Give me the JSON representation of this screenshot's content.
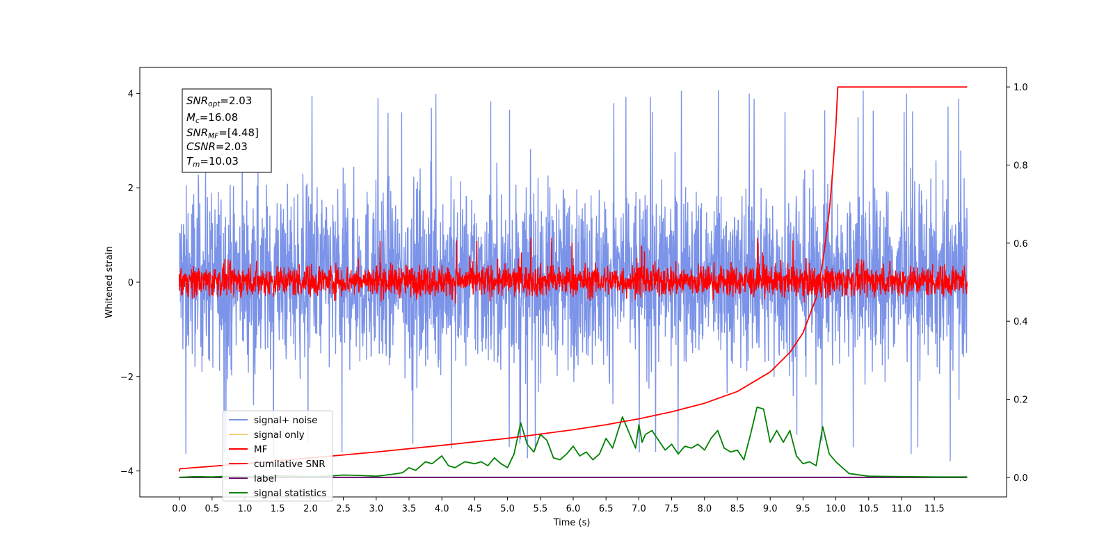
{
  "chart_data": {
    "type": "line",
    "xlabel": "Time (s)",
    "ylabel": "Whitened strain",
    "xlim": [
      -0.6,
      12.6
    ],
    "ylim": [
      -4.55,
      4.55
    ],
    "y2lim": [
      -0.05,
      1.05
    ],
    "x_ticks": [
      "0.0",
      "0.5",
      "1.0",
      "1.5",
      "2.0",
      "2.5",
      "3.0",
      "3.5",
      "4.0",
      "4.5",
      "5.0",
      "5.5",
      "6.0",
      "6.5",
      "7.0",
      "7.5",
      "8.0",
      "8.5",
      "9.0",
      "9.5",
      "10.0",
      "10.5",
      "11.0",
      "11.5"
    ],
    "y_ticks": [
      "4",
      "2",
      "0",
      "−2",
      "−4"
    ],
    "y2_ticks": [
      "1.0",
      "0.8",
      "0.6",
      "0.4",
      "0.2",
      "0.0"
    ],
    "annotation": {
      "snr_opt": {
        "base": "SNR",
        "sub": "opt",
        "value": "=2.03"
      },
      "mc": {
        "base": "M",
        "sub": "c",
        "value": "=16.08"
      },
      "snr_mf": {
        "base": "SNR",
        "sub": "MF",
        "value": "=[4.48]"
      },
      "csnr": {
        "base": "CSNR",
        "value": "=2.03"
      },
      "tm": {
        "base": "T",
        "sub": "m",
        "value": "=10.03"
      }
    },
    "legend": {
      "placement": "lower left",
      "entries": [
        {
          "label": "signal+ noise",
          "color": "#7b93e8"
        },
        {
          "label": "signal only",
          "color": "#f7cf7a"
        },
        {
          "label": "MF",
          "color": "#ff0000"
        },
        {
          "label": "cumilative SNR",
          "color": "#ff0000"
        },
        {
          "label": "label",
          "color": "#6a0a6e"
        },
        {
          "label": "signal statistics",
          "color": "#008000"
        }
      ]
    },
    "series": [
      {
        "name": "signal+ noise",
        "axis": "left",
        "style": "noise band",
        "x_range": [
          0.0,
          12.0
        ],
        "typical_range": [
          -2.0,
          2.2
        ],
        "extremes": [
          -3.8,
          4.1
        ],
        "color": "#7b93e8"
      },
      {
        "name": "signal only",
        "axis": "left",
        "x_range": [
          0.0,
          12.0
        ],
        "color": "#f7cf7a"
      },
      {
        "name": "MF",
        "axis": "left",
        "style": "noise band",
        "x_range": [
          0.0,
          12.0
        ],
        "typical_range": [
          -0.3,
          0.4
        ],
        "extremes": [
          -0.45,
          1.0
        ],
        "color": "#ff0000"
      },
      {
        "name": "cumilative SNR",
        "axis": "right",
        "x": [
          0.0,
          0.01,
          1,
          2,
          3,
          4,
          5,
          6,
          6.5,
          7,
          7.5,
          8,
          8.5,
          9,
          9.3,
          9.5,
          9.7,
          9.8,
          9.9,
          9.95,
          10.0,
          10.03,
          12.0
        ],
        "values": [
          0.015,
          0.022,
          0.035,
          0.05,
          0.065,
          0.082,
          0.1,
          0.122,
          0.135,
          0.15,
          0.168,
          0.19,
          0.22,
          0.27,
          0.32,
          0.37,
          0.46,
          0.55,
          0.68,
          0.78,
          0.9,
          1.0,
          1.0
        ],
        "color": "#ff0000"
      },
      {
        "name": "label",
        "axis": "right",
        "x": [
          0.0,
          12.0
        ],
        "values": [
          0.0,
          0.0
        ],
        "color": "#6a0a6e"
      },
      {
        "name": "signal statistics",
        "axis": "right",
        "x": [
          0,
          0.25,
          0.5,
          0.75,
          1,
          1.25,
          1.5,
          1.75,
          2,
          2.25,
          2.5,
          2.75,
          3,
          3.25,
          3.4,
          3.5,
          3.6,
          3.75,
          3.85,
          4.0,
          4.1,
          4.2,
          4.35,
          4.5,
          4.6,
          4.7,
          4.8,
          4.9,
          5.0,
          5.1,
          5.2,
          5.3,
          5.4,
          5.5,
          5.6,
          5.7,
          5.8,
          5.9,
          6.0,
          6.1,
          6.2,
          6.3,
          6.4,
          6.5,
          6.6,
          6.75,
          6.85,
          6.95,
          7.0,
          7.05,
          7.1,
          7.2,
          7.3,
          7.4,
          7.5,
          7.6,
          7.7,
          7.8,
          7.9,
          8.0,
          8.1,
          8.2,
          8.3,
          8.4,
          8.5,
          8.6,
          8.7,
          8.8,
          8.9,
          9.0,
          9.1,
          9.2,
          9.3,
          9.4,
          9.5,
          9.6,
          9.7,
          9.8,
          9.9,
          10.0,
          10.2,
          10.5,
          11.0,
          11.5,
          12.0
        ],
        "values": [
          0,
          0.002,
          0.001,
          0.003,
          0.001,
          0.002,
          0.004,
          0.003,
          0.002,
          0.003,
          0.006,
          0.005,
          0.003,
          0.008,
          0.012,
          0.025,
          0.018,
          0.04,
          0.035,
          0.055,
          0.03,
          0.025,
          0.04,
          0.035,
          0.04,
          0.03,
          0.05,
          0.035,
          0.025,
          0.06,
          0.14,
          0.085,
          0.065,
          0.11,
          0.095,
          0.05,
          0.045,
          0.06,
          0.08,
          0.055,
          0.065,
          0.045,
          0.06,
          0.1,
          0.075,
          0.155,
          0.115,
          0.075,
          0.135,
          0.09,
          0.11,
          0.12,
          0.095,
          0.07,
          0.085,
          0.06,
          0.08,
          0.075,
          0.085,
          0.07,
          0.1,
          0.12,
          0.075,
          0.065,
          0.07,
          0.045,
          0.11,
          0.18,
          0.175,
          0.09,
          0.12,
          0.09,
          0.12,
          0.055,
          0.035,
          0.04,
          0.03,
          0.13,
          0.06,
          0.04,
          0.01,
          0.003,
          0.002,
          0.001,
          0.001
        ],
        "color": "#008000"
      }
    ]
  }
}
